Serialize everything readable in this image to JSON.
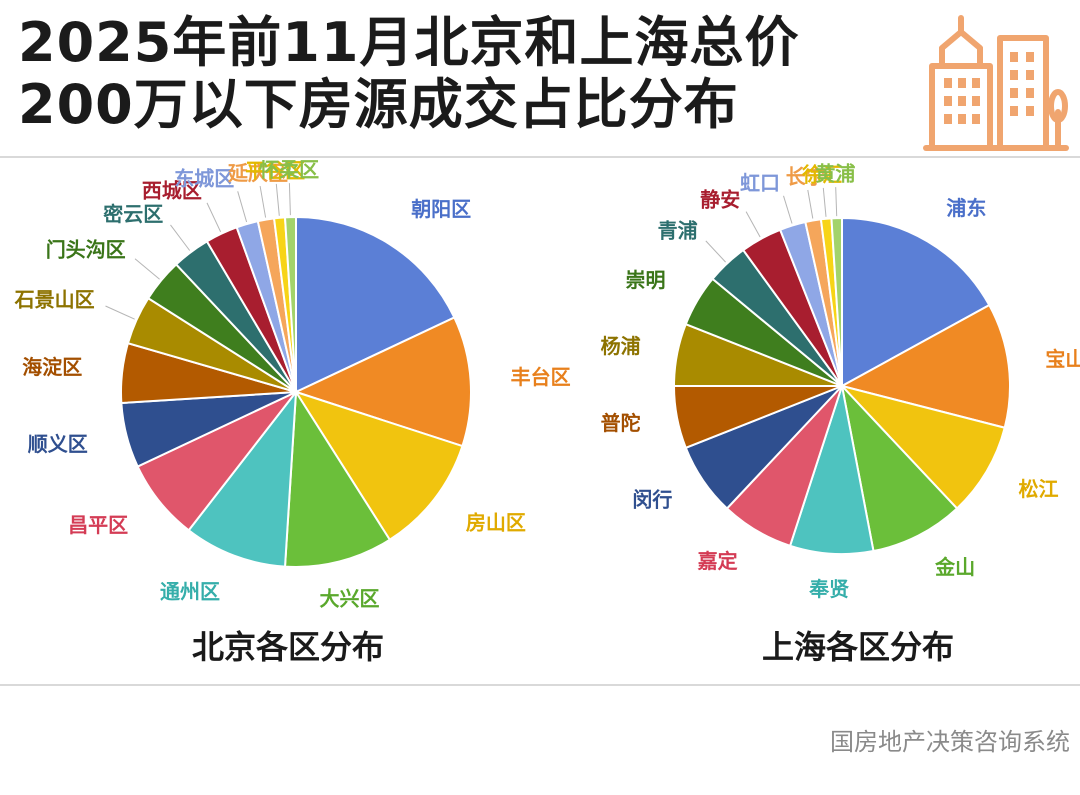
{
  "header": {
    "title_line1": "2025年前11月北京和上海总价",
    "title_line2": "200万以下房源成交占比分布",
    "icon": "city-buildings-icon",
    "icon_color": "#f0a56f"
  },
  "chart_data": [
    {
      "type": "pie",
      "title": "北京各区分布",
      "series": [
        {
          "label": "朝阳区",
          "value": 18.0,
          "color": "#5b7fd6",
          "label_color": "#4a6fc9"
        },
        {
          "label": "丰台区",
          "value": 12.0,
          "color": "#f08a24",
          "label_color": "#e8801c"
        },
        {
          "label": "房山区",
          "value": 11.0,
          "color": "#f1c40f",
          "label_color": "#e0aa00"
        },
        {
          "label": "大兴区",
          "value": 10.0,
          "color": "#6bbf3a",
          "label_color": "#5aa82c"
        },
        {
          "label": "通州区",
          "value": 9.5,
          "color": "#4ec3bf",
          "label_color": "#35aeaa"
        },
        {
          "label": "昌平区",
          "value": 7.5,
          "color": "#e0566b",
          "label_color": "#d43c55"
        },
        {
          "label": "顺义区",
          "value": 6.0,
          "color": "#2f4f8f",
          "label_color": "#2f4f8f"
        },
        {
          "label": "海淀区",
          "value": 5.5,
          "color": "#b35a00",
          "label_color": "#a34f00"
        },
        {
          "label": "石景山区",
          "value": 4.5,
          "color": "#a98b00",
          "label_color": "#8d7300"
        },
        {
          "label": "门头沟区",
          "value": 4.0,
          "color": "#3f7e1e",
          "label_color": "#3a7519"
        },
        {
          "label": "密云区",
          "value": 3.5,
          "color": "#2d6f6e",
          "label_color": "#2d6f6e"
        },
        {
          "label": "西城区",
          "value": 3.0,
          "color": "#a81e2f",
          "label_color": "#a81e2f"
        },
        {
          "label": "东城区",
          "value": 2.0,
          "color": "#8fa7e6",
          "label_color": "#7e97d9"
        },
        {
          "label": "延庆区",
          "value": 1.5,
          "color": "#f5a65b",
          "label_color": "#ef9b46"
        },
        {
          "label": "平谷区",
          "value": 1.0,
          "color": "#f7d417",
          "label_color": "#e3b800"
        },
        {
          "label": "怀柔区",
          "value": 1.0,
          "color": "#a3d36b",
          "label_color": "#88bf48"
        }
      ]
    },
    {
      "type": "pie",
      "title": "上海各区分布",
      "series": [
        {
          "label": "浦东",
          "value": 17.0,
          "color": "#5b7fd6",
          "label_color": "#4a6fc9"
        },
        {
          "label": "宝山",
          "value": 12.0,
          "color": "#f08a24",
          "label_color": "#e8801c"
        },
        {
          "label": "松江",
          "value": 9.0,
          "color": "#f1c40f",
          "label_color": "#e0aa00"
        },
        {
          "label": "金山",
          "value": 9.0,
          "color": "#6bbf3a",
          "label_color": "#5aa82c"
        },
        {
          "label": "奉贤",
          "value": 8.0,
          "color": "#4ec3bf",
          "label_color": "#35aeaa"
        },
        {
          "label": "嘉定",
          "value": 7.0,
          "color": "#e0566b",
          "label_color": "#d43c55"
        },
        {
          "label": "闵行",
          "value": 7.0,
          "color": "#2f4f8f",
          "label_color": "#2f4f8f"
        },
        {
          "label": "普陀",
          "value": 6.0,
          "color": "#b35a00",
          "label_color": "#a34f00"
        },
        {
          "label": "杨浦",
          "value": 6.0,
          "color": "#a98b00",
          "label_color": "#8d7300"
        },
        {
          "label": "崇明",
          "value": 5.0,
          "color": "#3f7e1e",
          "label_color": "#3a7519"
        },
        {
          "label": "青浦",
          "value": 4.0,
          "color": "#2d6f6e",
          "label_color": "#2d6f6e"
        },
        {
          "label": "静安",
          "value": 4.0,
          "color": "#a81e2f",
          "label_color": "#a81e2f"
        },
        {
          "label": "虹口",
          "value": 2.5,
          "color": "#8fa7e6",
          "label_color": "#7e97d9"
        },
        {
          "label": "长宁",
          "value": 1.5,
          "color": "#f5a65b",
          "label_color": "#ef9b46"
        },
        {
          "label": "徐汇",
          "value": 1.0,
          "color": "#f7d417",
          "label_color": "#e3b800"
        },
        {
          "label": "黄浦",
          "value": 1.0,
          "color": "#a3d36b",
          "label_color": "#88bf48"
        }
      ]
    }
  ],
  "footer": {
    "source_text": "国房地产决策咨询系统"
  }
}
